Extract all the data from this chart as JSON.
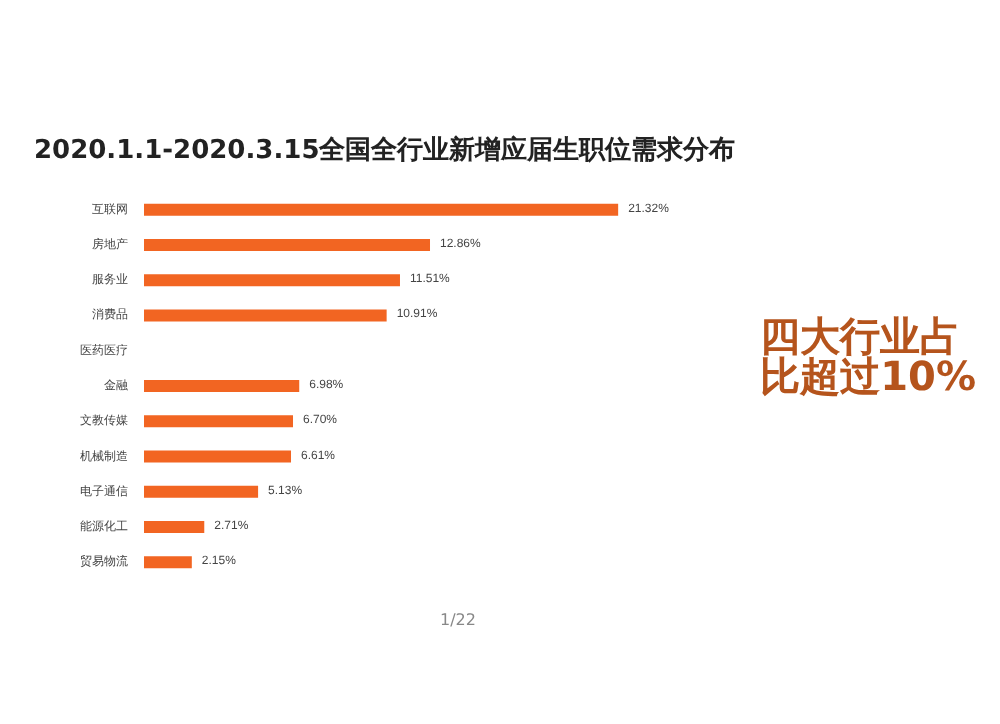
{
  "chart_data": {
    "type": "bar",
    "orientation": "horizontal",
    "title": "2020.1.1-2020.3.15全国全行业新增应届生职位需求分布",
    "categories": [
      "互联网",
      "房地产",
      "服务业",
      "消费品",
      "医药医疗",
      "金融",
      "文教传媒",
      "机械制造",
      "电子通信",
      "能源化工",
      "贸易物流"
    ],
    "values": [
      21.32,
      12.86,
      11.51,
      10.91,
      null,
      6.98,
      6.7,
      6.61,
      5.13,
      2.71,
      2.15
    ],
    "value_labels": [
      "21.32%",
      "12.86%",
      "11.51%",
      "10.91%",
      null,
      "6.98%",
      "6.70%",
      "6.61%",
      "5.13%",
      "2.71%",
      "2.15%"
    ],
    "color": "#f26522",
    "annotations": [
      "四大行业占比超过10%",
      "1/22"
    ]
  }
}
